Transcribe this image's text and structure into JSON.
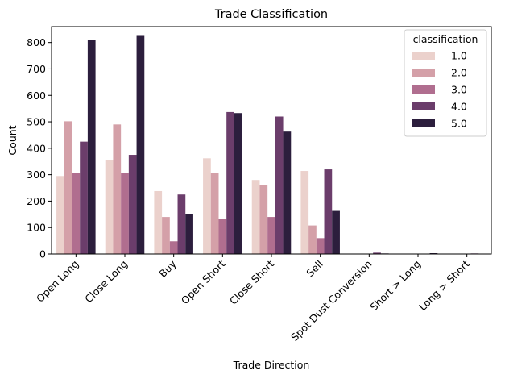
{
  "chart_data": {
    "type": "bar",
    "title": "Trade Classification",
    "xlabel": "Trade Direction",
    "ylabel": "Count",
    "ylim": [
      0,
      860
    ],
    "yticks": [
      0,
      100,
      200,
      300,
      400,
      500,
      600,
      700,
      800
    ],
    "categories": [
      "Open Long",
      "Close Long",
      "Buy",
      "Open Short",
      "Close Short",
      "Sell",
      "Spot Dust Conversion",
      "Short > Long",
      "Long > Short"
    ],
    "legend": {
      "title": "classification",
      "position": "top-right"
    },
    "grid": false,
    "series": [
      {
        "name": "1.0",
        "color": "#ebd1cc",
        "values": [
          295,
          355,
          238,
          362,
          280,
          314,
          0,
          0,
          0
        ]
      },
      {
        "name": "2.0",
        "color": "#d4a0a8",
        "values": [
          502,
          490,
          140,
          305,
          260,
          108,
          0,
          0,
          0
        ]
      },
      {
        "name": "3.0",
        "color": "#b06e8f",
        "values": [
          305,
          308,
          48,
          133,
          140,
          60,
          0,
          0,
          0
        ]
      },
      {
        "name": "4.0",
        "color": "#6b3d6b",
        "values": [
          425,
          375,
          225,
          537,
          520,
          320,
          5,
          1,
          2
        ]
      },
      {
        "name": "5.0",
        "color": "#2c1e3d",
        "values": [
          810,
          825,
          152,
          533,
          463,
          163,
          2,
          3,
          0
        ]
      }
    ]
  }
}
